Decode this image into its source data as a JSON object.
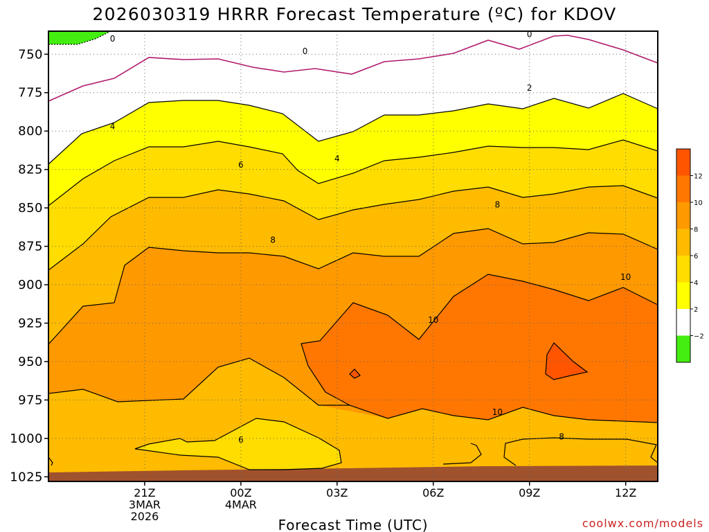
{
  "chart_data": {
    "type": "contour",
    "title": "2026030319 HRRR Forecast Temperature (ºC) for KDOV",
    "xlabel": "Forecast Time (UTC)",
    "ylabel": "",
    "credit": "coolwx.com/models",
    "y_axis": {
      "quantity": "pressure (hPa)",
      "ticks": [
        750,
        775,
        800,
        825,
        850,
        875,
        900,
        925,
        950,
        975,
        1000,
        1025
      ],
      "inverted": true
    },
    "x_axis": {
      "ticks": [
        {
          "hour": 21,
          "lines": [
            "21Z",
            "3MAR",
            "2026"
          ]
        },
        {
          "hour": 24,
          "lines": [
            "00Z",
            "4MAR"
          ]
        },
        {
          "hour": 27,
          "lines": [
            "03Z"
          ]
        },
        {
          "hour": 30,
          "lines": [
            "06Z"
          ]
        },
        {
          "hour": 33,
          "lines": [
            "09Z"
          ]
        },
        {
          "hour": 36,
          "lines": [
            "12Z"
          ]
        }
      ]
    },
    "grid": true,
    "colorbar": {
      "ticks": [
        12,
        10,
        8,
        6,
        4,
        2,
        -2
      ],
      "colors": {
        "below_minus2": "#44ee11",
        "minus2_to_2": "#ffffff",
        "2_to_4": "#ffff00",
        "4_to_6": "#ffdd00",
        "6_to_8": "#ffbb00",
        "8_to_10": "#ff9900",
        "10_to_12": "#ff7700",
        "above_12": "#ff5500"
      }
    },
    "contour_labels": [
      {
        "value": "0",
        "hour": 20.0,
        "p": 740
      },
      {
        "value": "0",
        "hour": 26.0,
        "p": 748
      },
      {
        "value": "0",
        "hour": 33.0,
        "p": 737
      },
      {
        "value": "2",
        "hour": 33.0,
        "p": 772
      },
      {
        "value": "4",
        "hour": 20.0,
        "p": 797
      },
      {
        "value": "4",
        "hour": 27.0,
        "p": 818
      },
      {
        "value": "6",
        "hour": 24.0,
        "p": 822
      },
      {
        "value": "6",
        "hour": 24.0,
        "p": 1001
      },
      {
        "value": "8",
        "hour": 25.0,
        "p": 871
      },
      {
        "value": "8",
        "hour": 32.0,
        "p": 848
      },
      {
        "value": "8",
        "hour": 34.0,
        "p": 999
      },
      {
        "value": "10",
        "hour": 36.0,
        "p": 895
      },
      {
        "value": "10",
        "hour": 30.0,
        "p": 923
      },
      {
        "value": "10",
        "hour": 32.0,
        "p": 983
      }
    ],
    "ground": {
      "color": "#a0522d"
    }
  }
}
